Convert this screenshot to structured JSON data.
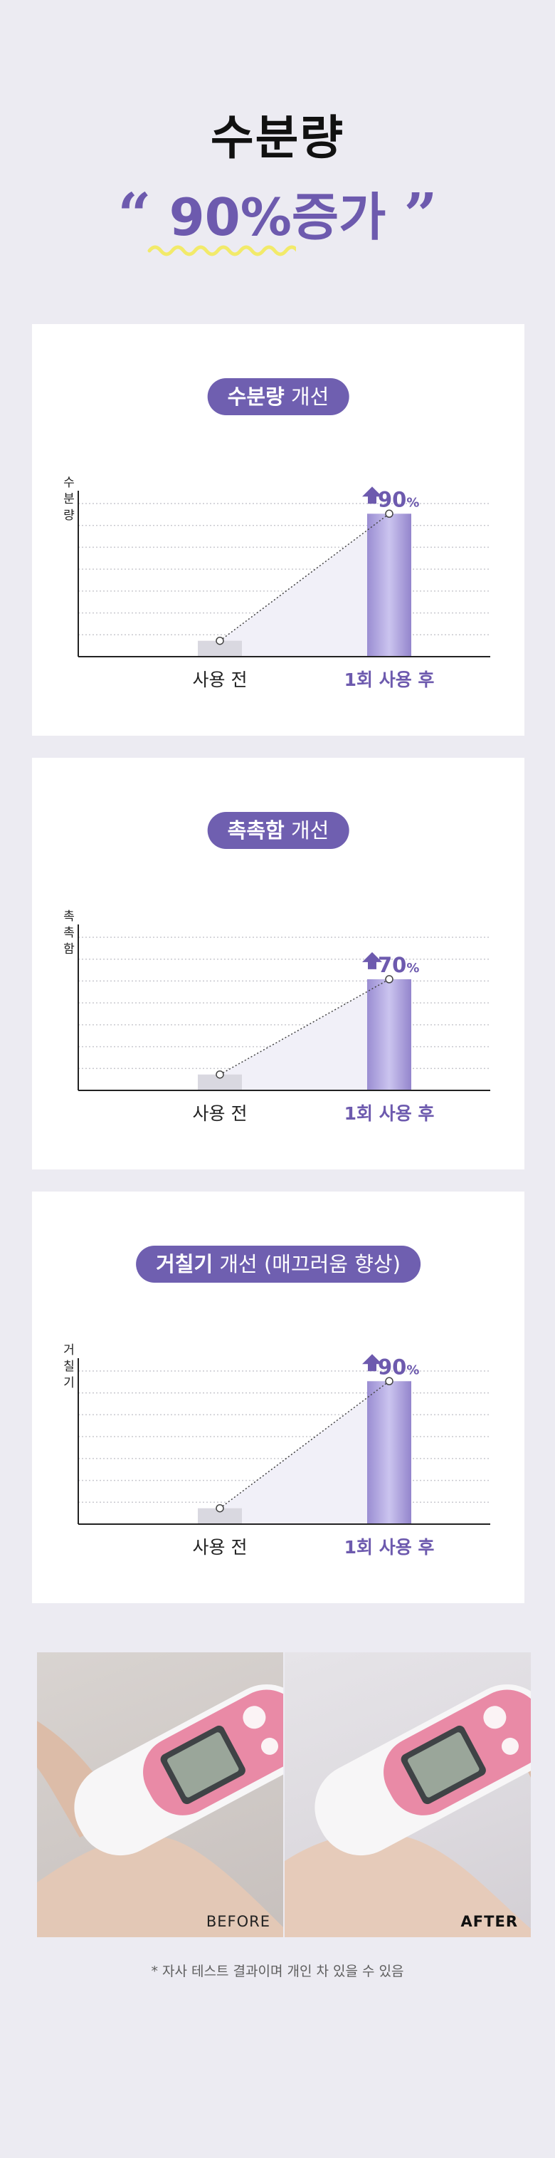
{
  "headline": {
    "line1": "수분량",
    "quote_open": "“",
    "value": "90%증가",
    "quote_close": "”"
  },
  "colors": {
    "accent": "#6d5aae",
    "bar_after": "#a69ad9",
    "bar_before": "#d9d8e0",
    "squiggle": "#f2ea6a"
  },
  "chart_data": [
    {
      "type": "bar",
      "title_bold": "수분량",
      "title_rest": " 개선",
      "ylabel": "수분량",
      "categories": [
        "사용 전",
        "1회 사용 후"
      ],
      "values": [
        10,
        90
      ],
      "annotation": "90",
      "annotation_unit": "%",
      "ylim": [
        0,
        100
      ],
      "gridlines": 7
    },
    {
      "type": "bar",
      "title_bold": "촉촉함",
      "title_rest": " 개선",
      "ylabel": "촉촉함",
      "categories": [
        "사용 전",
        "1회 사용 후"
      ],
      "values": [
        10,
        70
      ],
      "annotation": "70",
      "annotation_unit": "%",
      "ylim": [
        0,
        100
      ],
      "gridlines": 7
    },
    {
      "type": "bar",
      "title_bold": "거칠기",
      "title_rest": " 개선 (매끄러움 향상)",
      "ylabel": "거칠기",
      "categories": [
        "사용 전",
        "1회 사용 후"
      ],
      "values": [
        10,
        90
      ],
      "annotation": "90",
      "annotation_unit": "%",
      "ylim": [
        0,
        100
      ],
      "gridlines": 7
    }
  ],
  "photos": {
    "before_label": "BEFORE",
    "after_label": "AFTER"
  },
  "footnote": "* 자사 테스트 결과이며 개인 차 있을 수 있음"
}
